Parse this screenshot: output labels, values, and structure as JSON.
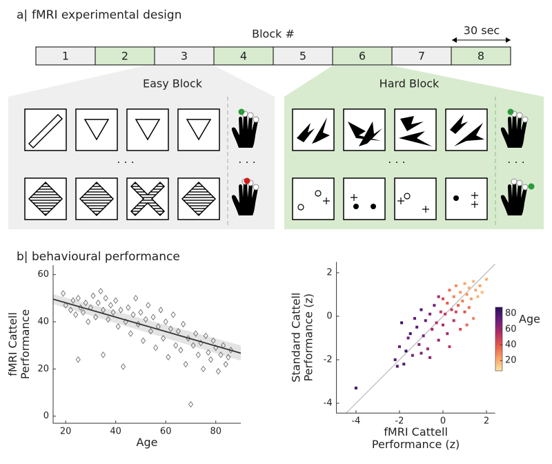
{
  "panel_a": {
    "label": "a|",
    "title": "fMRI experimental design",
    "block_axis_label": "Block #",
    "blocks": [
      "1",
      "2",
      "3",
      "4",
      "5",
      "6",
      "7",
      "8"
    ],
    "block_colors": [
      "#efefef",
      "#d8ebcf"
    ],
    "duration": "30 sec",
    "easy_label": "Easy Block",
    "hard_label": "Hard Block",
    "ellipsis": "· · ·"
  },
  "panel_b": {
    "label": "b|",
    "title": "behavioural performance"
  },
  "chart_data": [
    {
      "type": "scatter",
      "xlabel": [
        "Age"
      ],
      "ylabel": [
        "fMRI Cattell",
        "Performance"
      ],
      "xlim": [
        15,
        90
      ],
      "ylim": [
        -3,
        64
      ],
      "xticks": [
        20,
        40,
        60,
        80
      ],
      "yticks": [
        0,
        20,
        40,
        60
      ],
      "marker_color": "#6a6a6a",
      "x": [
        19,
        20,
        22,
        23,
        24,
        25,
        25,
        26,
        27,
        28,
        29,
        30,
        31,
        32,
        33,
        34,
        35,
        35,
        36,
        37,
        38,
        39,
        40,
        41,
        42,
        43,
        44,
        45,
        46,
        47,
        48,
        49,
        50,
        51,
        52,
        53,
        54,
        55,
        56,
        57,
        58,
        59,
        60,
        61,
        62,
        63,
        64,
        65,
        66,
        67,
        68,
        69,
        70,
        71,
        72,
        73,
        74,
        75,
        76,
        77,
        78,
        79,
        80,
        81,
        82,
        83,
        84,
        85,
        86
      ],
      "values": [
        52,
        47,
        45,
        49,
        43,
        50,
        24,
        46,
        44,
        48,
        40,
        46,
        51,
        42,
        48,
        53,
        26,
        45,
        50,
        41,
        47,
        44,
        49,
        38,
        45,
        21,
        40,
        46,
        35,
        43,
        50,
        39,
        44,
        32,
        41,
        47,
        36,
        42,
        29,
        38,
        45,
        33,
        40,
        25,
        37,
        43,
        30,
        36,
        28,
        39,
        22,
        33,
        5,
        30,
        35,
        26,
        31,
        20,
        34,
        27,
        24,
        32,
        29,
        19,
        26,
        30,
        22,
        25,
        28
      ],
      "fit_line": {
        "x": [
          15,
          90
        ],
        "y": [
          49.6,
          26.7
        ],
        "color": "#333333"
      },
      "band": {
        "x": [
          15,
          90
        ],
        "lower": [
          47.5,
          23.5
        ],
        "upper": [
          51.7,
          30
        ],
        "color": "#e4e4e4"
      }
    },
    {
      "type": "scatter",
      "xlabel": [
        "fMRI Cattell",
        "Performance (z)"
      ],
      "ylabel": [
        "Standard Cattell",
        "Performance (z)"
      ],
      "xlim": [
        -4.9,
        2.4
      ],
      "ylim": [
        -4.45,
        2.5
      ],
      "xticks": [
        -4,
        -2,
        0,
        2
      ],
      "yticks": [
        -4,
        -2,
        0,
        2
      ],
      "diagonal": true,
      "x": [
        -4,
        -2.2,
        -2,
        -1.9,
        -1.8,
        -1.6,
        -1.5,
        -1.4,
        -1.2,
        -1.1,
        -1,
        -0.9,
        -0.8,
        -0.7,
        -0.6,
        -0.5,
        -0.4,
        -0.3,
        -0.2,
        -0.1,
        0,
        0,
        0.1,
        0.2,
        0.2,
        0.3,
        0.4,
        0.5,
        0.5,
        0.6,
        0.7,
        0.8,
        0.8,
        0.9,
        1,
        1,
        1.1,
        1.2,
        1.2,
        1.3,
        1.4,
        1.4,
        1.5,
        1.6,
        1.7,
        1.8,
        2,
        -1.7,
        -2.1,
        -1.3,
        -0.6,
        0.3,
        -0.2,
        0.6,
        1.1,
        -1
      ],
      "values": [
        -3.3,
        -2,
        -1.4,
        -0.3,
        -2.2,
        -1,
        -0.8,
        -1.8,
        -0.5,
        -1.3,
        0.3,
        -0.9,
        -0.2,
        -1.5,
        0.1,
        -0.6,
        0.5,
        -0.3,
        -1.1,
        0.2,
        -0.4,
        0.8,
        0.1,
        0.6,
        -0.8,
        1.2,
        0.3,
        0.9,
        -0.2,
        1.4,
        0.5,
        1.1,
        -0.6,
        0.7,
        1.5,
        0.2,
        1,
        1.3,
        0.4,
        0.8,
        1.6,
        -0.1,
        1.2,
        0.9,
        1.4,
        1.1,
        1.7,
        -1.6,
        -2.3,
        -0.1,
        -1.9,
        -1.4,
        0.9,
        0.2,
        -0.4,
        -1.7
      ],
      "color_values": [
        80,
        75,
        70,
        85,
        78,
        72,
        82,
        68,
        76,
        65,
        79,
        70,
        74,
        60,
        66,
        58,
        71,
        55,
        62,
        50,
        57,
        45,
        52,
        40,
        60,
        35,
        48,
        30,
        55,
        28,
        38,
        25,
        44,
        32,
        22,
        42,
        26,
        20,
        35,
        24,
        18,
        30,
        21,
        19,
        23,
        17,
        20,
        84,
        77,
        73,
        64,
        50,
        58,
        46,
        36,
        67
      ],
      "colorbar_label": "Age",
      "clim": [
        7,
        88
      ],
      "cticks": [
        20,
        40,
        60,
        80
      ],
      "colormap": [
        "#fde6a8",
        "#f9a266",
        "#e65a4c",
        "#b22c66",
        "#6b1c7c",
        "#2a0f5e"
      ]
    }
  ]
}
